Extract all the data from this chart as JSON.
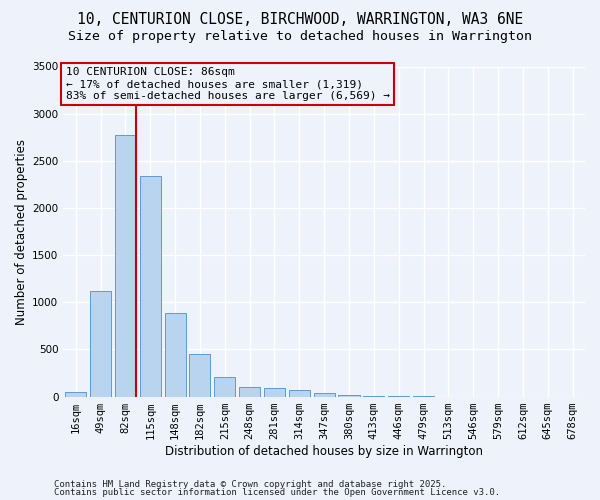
{
  "title1": "10, CENTURION CLOSE, BIRCHWOOD, WARRINGTON, WA3 6NE",
  "title2": "Size of property relative to detached houses in Warrington",
  "xlabel": "Distribution of detached houses by size in Warrington",
  "ylabel": "Number of detached properties",
  "categories": [
    "16sqm",
    "49sqm",
    "82sqm",
    "115sqm",
    "148sqm",
    "182sqm",
    "215sqm",
    "248sqm",
    "281sqm",
    "314sqm",
    "347sqm",
    "380sqm",
    "413sqm",
    "446sqm",
    "479sqm",
    "513sqm",
    "546sqm",
    "579sqm",
    "612sqm",
    "645sqm",
    "678sqm"
  ],
  "values": [
    50,
    1120,
    2770,
    2340,
    890,
    450,
    210,
    105,
    90,
    65,
    35,
    20,
    10,
    5,
    2,
    0,
    0,
    0,
    0,
    0,
    0
  ],
  "bar_color": "#b8d4ee",
  "bar_edge_color": "#5b9bd5",
  "vline_color": "#cc0000",
  "annotation_line1": "10 CENTURION CLOSE: 86sqm",
  "annotation_line2": "← 17% of detached houses are smaller (1,319)",
  "annotation_line3": "83% of semi-detached houses are larger (6,569) →",
  "annotation_box_edgecolor": "#cc0000",
  "ylim": [
    0,
    3500
  ],
  "yticks": [
    0,
    500,
    1000,
    1500,
    2000,
    2500,
    3000,
    3500
  ],
  "background_color": "#eef2fb",
  "grid_color": "#ffffff",
  "footer1": "Contains HM Land Registry data © Crown copyright and database right 2025.",
  "footer2": "Contains public sector information licensed under the Open Government Licence v3.0.",
  "title_fontsize": 10.5,
  "subtitle_fontsize": 9.5,
  "axis_label_fontsize": 8.5,
  "tick_fontsize": 7.5,
  "annotation_fontsize": 8,
  "footer_fontsize": 6.5
}
